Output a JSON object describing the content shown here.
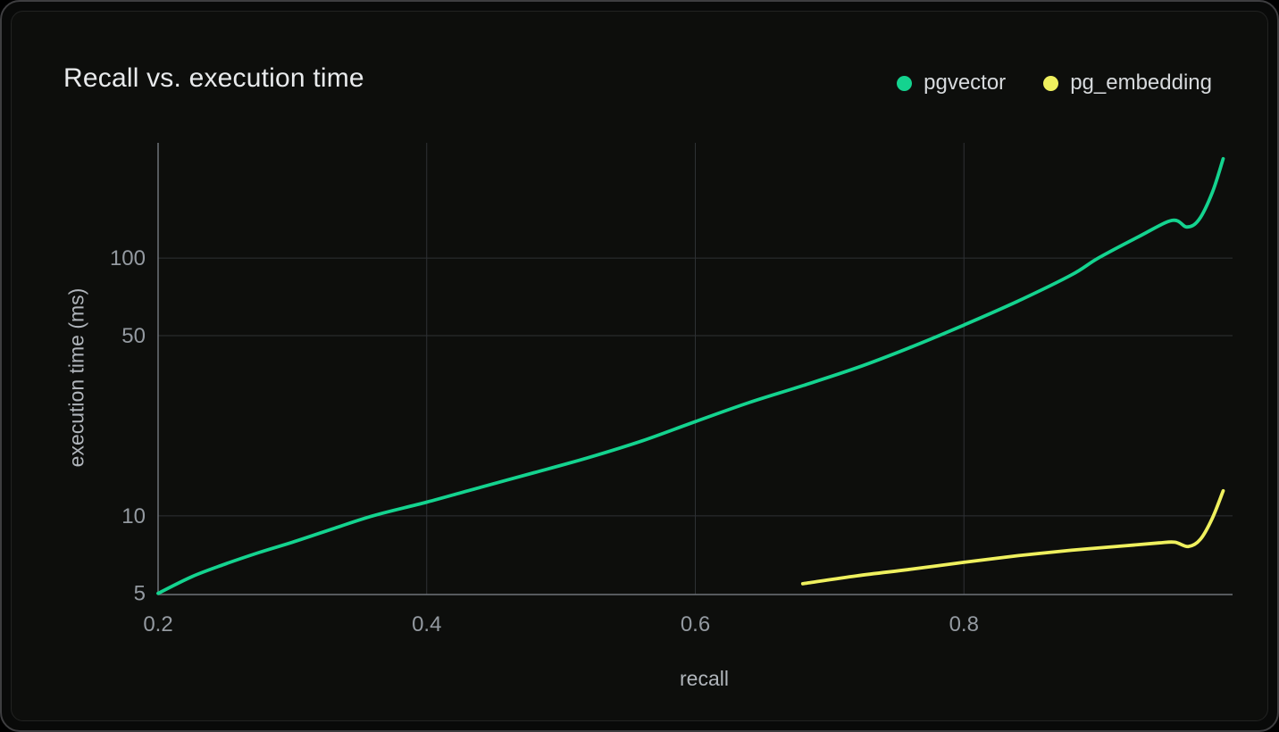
{
  "card": {
    "title": "Recall vs. execution time"
  },
  "legend": [
    {
      "label": "pgvector",
      "color": "#14d38f"
    },
    {
      "label": "pg_embedding",
      "color": "#eff05e"
    }
  ],
  "axes": {
    "x_title": "recall",
    "y_title": "execution time (ms)"
  },
  "colors": {
    "card_background": "#0d0e0c",
    "grid": "#2e3134",
    "axis": "#6e737a",
    "tick_text": "#949aa1",
    "title_text": "#e8eaec",
    "pgvector": "#14d38f",
    "pg_embedding": "#eff05e"
  },
  "chart_data": {
    "type": "line",
    "title": "Recall vs. execution time",
    "xlabel": "recall",
    "ylabel": "execution time (ms)",
    "x_scale": "linear",
    "y_scale": "log",
    "xlim": [
      0.2,
      1.0
    ],
    "ylim": [
      4.95,
      280
    ],
    "x_ticks": [
      0.2,
      0.4,
      0.6,
      0.8
    ],
    "y_ticks": [
      5,
      10,
      50,
      100
    ],
    "grid": true,
    "legend_position": "top-right",
    "series": [
      {
        "name": "pgvector",
        "color": "#14d38f",
        "points": [
          [
            0.2,
            5.0
          ],
          [
            0.225,
            5.8
          ],
          [
            0.25,
            6.5
          ],
          [
            0.275,
            7.2
          ],
          [
            0.3,
            7.9
          ],
          [
            0.33,
            8.9
          ],
          [
            0.36,
            10.0
          ],
          [
            0.4,
            11.3
          ],
          [
            0.44,
            12.9
          ],
          [
            0.48,
            14.7
          ],
          [
            0.52,
            16.8
          ],
          [
            0.56,
            19.5
          ],
          [
            0.6,
            23.2
          ],
          [
            0.64,
            27.5
          ],
          [
            0.68,
            32.0
          ],
          [
            0.72,
            37.5
          ],
          [
            0.76,
            45.0
          ],
          [
            0.8,
            55.0
          ],
          [
            0.84,
            68.0
          ],
          [
            0.88,
            86.0
          ],
          [
            0.9,
            100.0
          ],
          [
            0.93,
            121.0
          ],
          [
            0.955,
            140.0
          ],
          [
            0.966,
            132.0
          ],
          [
            0.975,
            141.0
          ],
          [
            0.985,
            180.0
          ],
          [
            0.993,
            243.0
          ]
        ]
      },
      {
        "name": "pg_embedding",
        "color": "#eff05e",
        "points": [
          [
            0.68,
            5.45
          ],
          [
            0.72,
            5.85
          ],
          [
            0.76,
            6.2
          ],
          [
            0.8,
            6.6
          ],
          [
            0.84,
            7.0
          ],
          [
            0.88,
            7.35
          ],
          [
            0.92,
            7.65
          ],
          [
            0.945,
            7.85
          ],
          [
            0.957,
            7.9
          ],
          [
            0.967,
            7.6
          ],
          [
            0.976,
            8.1
          ],
          [
            0.985,
            9.8
          ],
          [
            0.993,
            12.5
          ]
        ]
      }
    ]
  }
}
